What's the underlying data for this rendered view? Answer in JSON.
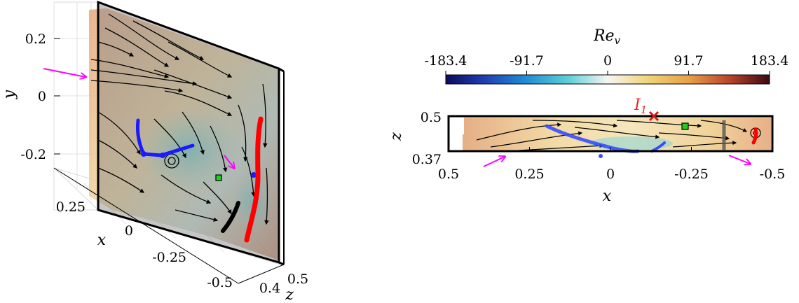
{
  "chart_data": [
    {
      "type": "vector-field",
      "panel": "3d",
      "xlabel": "x",
      "ylabel": "y",
      "zlabel": "z",
      "x_ticks": [
        "0.25",
        "0",
        "-0.25",
        "-0.5"
      ],
      "y_ticks": [
        "0.2",
        "0",
        "-0.2"
      ],
      "z_ticks": [
        "0.4",
        "0.5"
      ],
      "color_variable": "Re_v"
    },
    {
      "type": "vector-field",
      "panel": "top-view",
      "xlabel": "x",
      "ylabel": "z",
      "x_ticks": [
        "0.5",
        "0.25",
        "0",
        "-0.25",
        "-0.5"
      ],
      "y_ticks": [
        "0.5",
        "0.37"
      ],
      "xlim": [
        0.5,
        -0.5
      ],
      "ylim": [
        0.37,
        0.5
      ],
      "annotation": {
        "label_base": "I",
        "label_sub": "1",
        "x": -0.13,
        "z": 0.5,
        "color": "#e0281c"
      }
    },
    {
      "type": "colorbar",
      "label_base": "Re",
      "label_sub": "v",
      "ticks": [
        "-183.4",
        "-91.7",
        "0",
        "91.7",
        "183.4"
      ],
      "range": [
        -183.4,
        183.4
      ]
    }
  ],
  "colors": {
    "magenta_arrow": "#ff00ff",
    "red_curve": "#ff0000",
    "blue_curve": "#1a1aff",
    "black_curve": "#000000",
    "marker_green": "#22cc22"
  }
}
